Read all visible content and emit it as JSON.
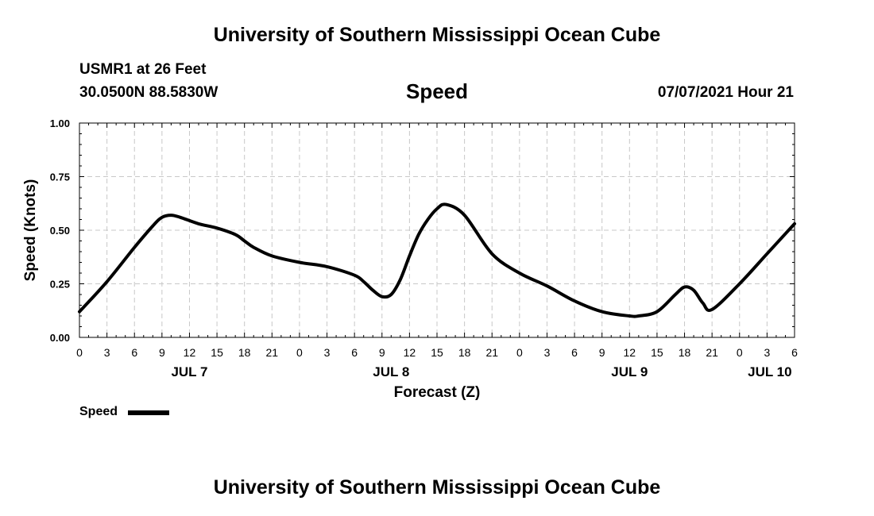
{
  "header": {
    "title": "University of Southern Mississippi Ocean Cube",
    "station": "USMR1 at 26 Feet",
    "coords": "30.0500N  88.5830W",
    "variable": "Speed",
    "datestamp": "07/07/2021 Hour 21"
  },
  "footer": {
    "title": "University of Southern Mississippi Ocean Cube"
  },
  "legend": {
    "label": "Speed"
  },
  "chart_data": {
    "type": "line",
    "title": "Speed",
    "xlabel": "Forecast (Z)",
    "ylabel": "Speed (Knots)",
    "xlim": [
      0,
      78
    ],
    "ylim": [
      0,
      1
    ],
    "grid": true,
    "x_ticks": [
      {
        "x": 0,
        "label": "0"
      },
      {
        "x": 3,
        "label": "3"
      },
      {
        "x": 6,
        "label": "6"
      },
      {
        "x": 9,
        "label": "9"
      },
      {
        "x": 12,
        "label": "12"
      },
      {
        "x": 15,
        "label": "15"
      },
      {
        "x": 18,
        "label": "18"
      },
      {
        "x": 21,
        "label": "21"
      },
      {
        "x": 24,
        "label": "0"
      },
      {
        "x": 27,
        "label": "3"
      },
      {
        "x": 30,
        "label": "6"
      },
      {
        "x": 33,
        "label": "9"
      },
      {
        "x": 36,
        "label": "12"
      },
      {
        "x": 39,
        "label": "15"
      },
      {
        "x": 42,
        "label": "18"
      },
      {
        "x": 45,
        "label": "21"
      },
      {
        "x": 48,
        "label": "0"
      },
      {
        "x": 51,
        "label": "3"
      },
      {
        "x": 54,
        "label": "6"
      },
      {
        "x": 57,
        "label": "9"
      },
      {
        "x": 60,
        "label": "12"
      },
      {
        "x": 63,
        "label": "15"
      },
      {
        "x": 66,
        "label": "18"
      },
      {
        "x": 69,
        "label": "21"
      },
      {
        "x": 72,
        "label": "0"
      },
      {
        "x": 75,
        "label": "3"
      },
      {
        "x": 78,
        "label": "6"
      }
    ],
    "date_labels": [
      {
        "x": 12,
        "label": "JUL 7"
      },
      {
        "x": 34,
        "label": "JUL 8"
      },
      {
        "x": 60,
        "label": "JUL 9"
      },
      {
        "x": 75.3,
        "label": "JUL 10"
      }
    ],
    "y_ticks": [
      {
        "y": 0,
        "label": "0.00"
      },
      {
        "y": 0.25,
        "label": "0.25"
      },
      {
        "y": 0.5,
        "label": "0.50"
      },
      {
        "y": 0.75,
        "label": "0.75"
      },
      {
        "y": 1.0,
        "label": "1.00"
      }
    ],
    "series": [
      {
        "name": "Speed",
        "color": "#000000",
        "x": [
          0,
          3,
          6,
          8,
          9,
          10,
          11,
          13,
          15,
          17,
          18,
          19,
          21,
          24,
          27,
          30,
          31,
          32,
          33,
          34,
          35,
          36,
          37,
          38,
          39,
          40,
          42,
          45,
          48,
          51,
          54,
          57,
          60,
          61,
          63,
          65,
          66,
          67,
          68,
          69,
          72,
          75,
          78
        ],
        "y": [
          0.12,
          0.26,
          0.42,
          0.52,
          0.56,
          0.57,
          0.56,
          0.53,
          0.51,
          0.48,
          0.45,
          0.42,
          0.38,
          0.35,
          0.33,
          0.29,
          0.26,
          0.22,
          0.19,
          0.2,
          0.27,
          0.38,
          0.48,
          0.55,
          0.6,
          0.62,
          0.57,
          0.39,
          0.3,
          0.24,
          0.17,
          0.12,
          0.1,
          0.1,
          0.12,
          0.2,
          0.235,
          0.22,
          0.16,
          0.13,
          0.25,
          0.39,
          0.53
        ]
      }
    ]
  }
}
